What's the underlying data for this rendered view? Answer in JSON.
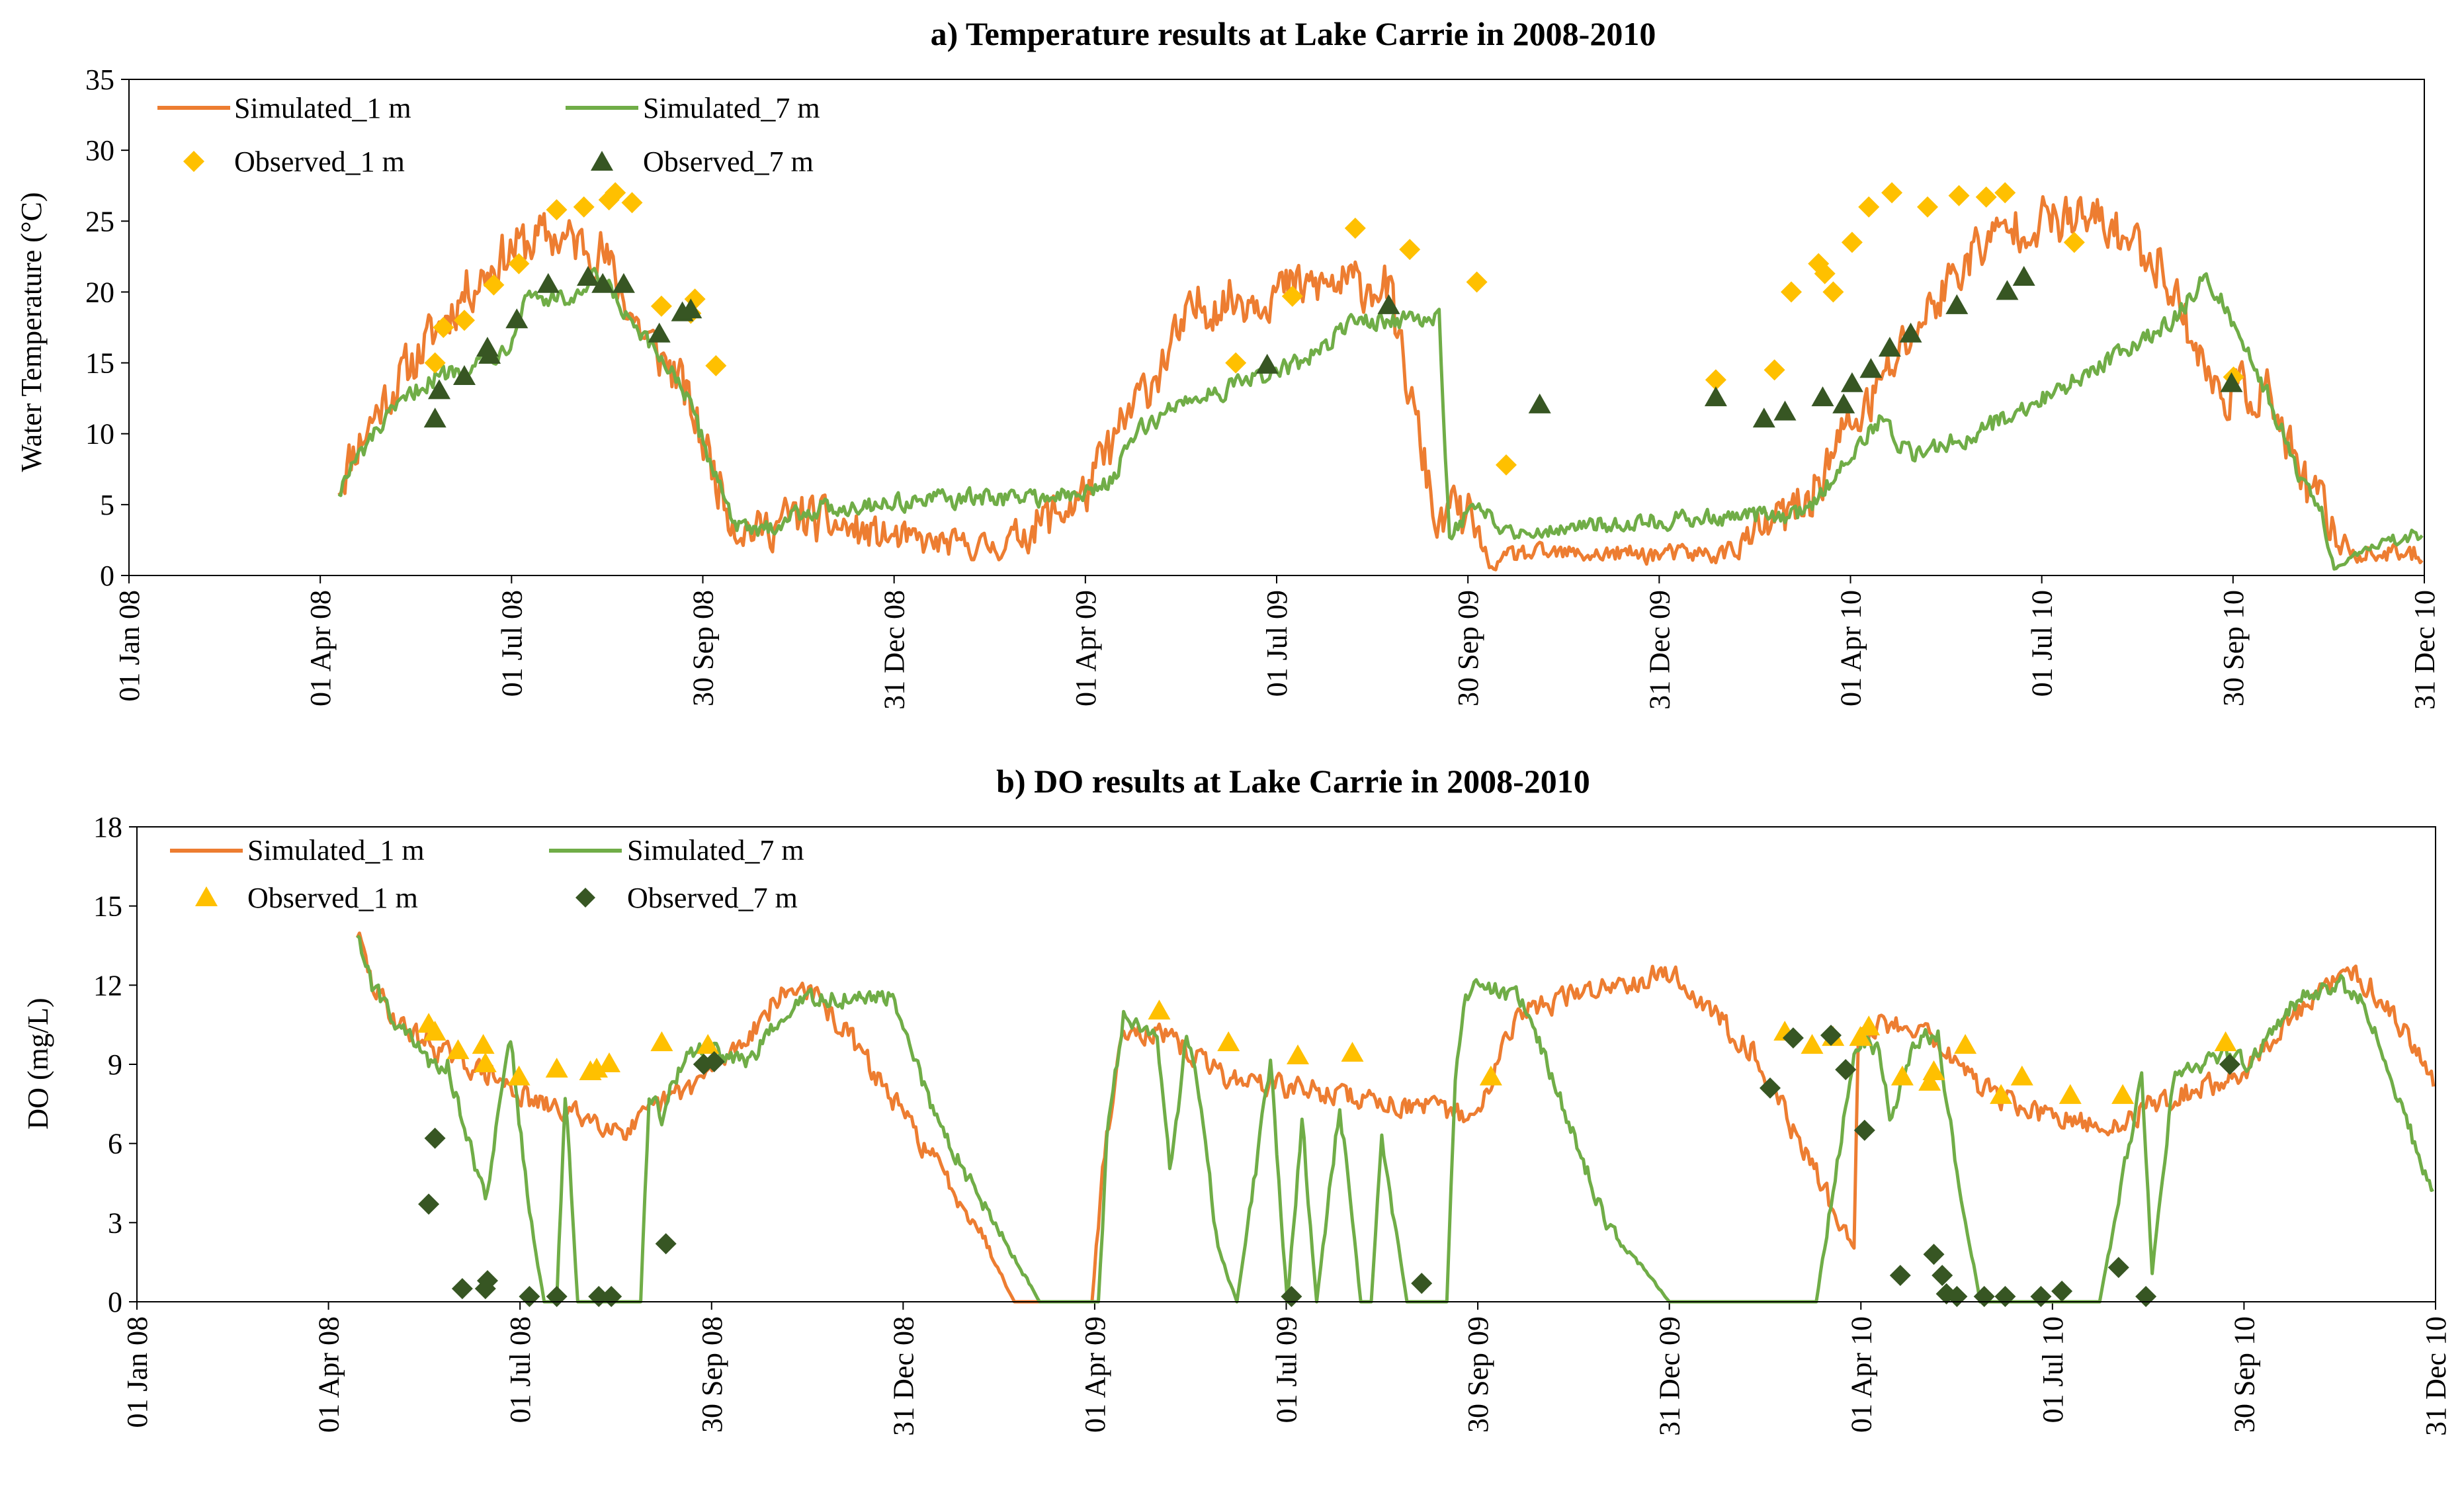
{
  "chart_data": [
    {
      "id": "temperature",
      "type": "line",
      "title": "a) Temperature results at Lake Carrie in 2008-2010",
      "xlabel": "",
      "ylabel": "Water Temperature (°C)",
      "ylim": [
        0,
        35
      ],
      "yticks": [
        0,
        5,
        10,
        15,
        20,
        25,
        30,
        35
      ],
      "xlim_days": [
        0,
        1095
      ],
      "xtick_labels": [
        "01 Jan 08",
        "01 Apr 08",
        "01 Jul 08",
        "30 Sep 08",
        "31 Dec 08",
        "01 Apr 09",
        "01 Jul 09",
        "30 Sep 09",
        "31 Dec 09",
        "01 Apr 10",
        "01 Jul 10",
        "30 Sep 10",
        "31 Dec 10"
      ],
      "x_units": "days since 01 Jan 2008",
      "grid": false,
      "legend_position": "top-left",
      "colors": {
        "sim1": "#ED7D31",
        "sim7": "#70AD47",
        "obs1": "#FFC000",
        "obs7": "#375623"
      },
      "legend": [
        {
          "key": "sim1",
          "label": "Simulated_1 m",
          "marker": "line"
        },
        {
          "key": "sim7",
          "label": "Simulated_7 m",
          "marker": "line"
        },
        {
          "key": "obs1",
          "label": "Observed_1 m",
          "marker": "diamond"
        },
        {
          "key": "obs7",
          "label": "Observed_7 m",
          "marker": "triangle"
        }
      ],
      "series": [
        {
          "key": "sim1",
          "name": "Simulated_1 m",
          "noise": 1.6,
          "x": [
            100,
            108,
            120,
            140,
            160,
            182,
            200,
            225,
            245,
            262,
            275,
            283,
            290,
            300,
            320,
            350,
            380,
            415,
            455,
            480,
            510,
            545,
            570,
            600,
            625,
            630,
            635,
            640,
            650,
            660,
            690,
            720,
            760,
            800,
            818,
            830,
            850,
            880,
            905,
            940,
            970,
            995,
            1020,
            1035,
            1045,
            1052,
            1062,
            1080,
            1094
          ],
          "y": [
            6.5,
            9,
            12,
            16,
            20,
            23,
            24,
            23,
            17,
            14,
            9,
            6,
            3.5,
            3.2,
            4.2,
            3,
            2.3,
            2,
            5.5,
            12,
            19,
            20,
            20.5,
            20.5,
            3,
            5,
            4,
            4,
            0.5,
            1.5,
            1.5,
            1.5,
            1.5,
            5,
            10,
            12,
            17,
            23,
            25,
            25,
            22,
            13,
            13,
            7,
            5,
            3,
            1.5,
            1.5,
            1.5
          ]
        },
        {
          "key": "sim7",
          "name": "Simulated_7 m",
          "noise": 0.6,
          "x": [
            100,
            108,
            120,
            140,
            155,
            165,
            180,
            190,
            200,
            215,
            222,
            230,
            240,
            262,
            275,
            283,
            290,
            300,
            320,
            350,
            380,
            415,
            455,
            470,
            480,
            505,
            520,
            560,
            585,
            600,
            615,
            625,
            630,
            640,
            650,
            660,
            690,
            720,
            760,
            800,
            818,
            835,
            850,
            880,
            920,
            975,
            990,
            1000,
            1020,
            1035,
            1045,
            1052,
            1062,
            1080,
            1094
          ],
          "y": [
            6,
            8,
            10.5,
            13.5,
            14.5,
            15,
            16,
            20,
            19.5,
            19.5,
            21,
            20,
            17.5,
            14,
            9,
            6,
            3.5,
            3,
            4.5,
            5,
            5.3,
            5.5,
            5.6,
            7,
            10,
            12.5,
            13,
            15,
            18,
            18,
            18,
            18,
            3,
            4.5,
            4,
            3,
            3.5,
            3.8,
            4.1,
            4.3,
            8,
            11,
            8.5,
            10,
            13,
            18,
            21,
            19,
            13,
            7,
            5,
            0.5,
            1.5,
            2.5,
            3
          ]
        },
        {
          "key": "obs1",
          "name": "Observed_1 m",
          "x": [
            146,
            150,
            160,
            174,
            186,
            204,
            217,
            229,
            232,
            240,
            254,
            268,
            270,
            280,
            528,
            555,
            585,
            611,
            643,
            657,
            757,
            785,
            793,
            806,
            809,
            813,
            822,
            830,
            841,
            858,
            873,
            886,
            895,
            928,
            1004
          ],
          "y": [
            15,
            17.5,
            18,
            20.5,
            22,
            25.8,
            26,
            26.5,
            27,
            26.3,
            19,
            18.5,
            19.5,
            14.8,
            15,
            19.7,
            24.5,
            23,
            20.7,
            7.8,
            13.8,
            14.5,
            20,
            22,
            21.3,
            20,
            23.5,
            26,
            27,
            26,
            26.8,
            26.7,
            27,
            23.5,
            14
          ]
        },
        {
          "key": "obs7",
          "name": "Observed_7 m",
          "x": [
            146,
            148,
            160,
            171,
            172,
            185,
            200,
            219,
            226,
            236,
            253,
            264,
            268,
            543,
            601,
            673,
            757,
            780,
            790,
            808,
            818,
            822,
            831,
            840,
            850,
            872,
            896,
            904,
            1003
          ],
          "y": [
            11,
            13,
            14,
            16,
            15.5,
            18,
            20.5,
            21,
            20.5,
            20.5,
            17,
            18.5,
            18.7,
            14.8,
            19,
            12,
            12.5,
            11,
            11.5,
            12.5,
            12,
            13.5,
            14.5,
            16,
            17,
            19,
            20,
            21,
            13.5
          ]
        }
      ]
    },
    {
      "id": "do",
      "type": "line",
      "title": "b) DO results at Lake Carrie in 2008-2010",
      "xlabel": "",
      "ylabel": "DO (mg/L)",
      "ylim": [
        0,
        18
      ],
      "yticks": [
        0,
        3,
        6,
        9,
        12,
        15,
        18
      ],
      "xlim_days": [
        0,
        1095
      ],
      "xtick_labels": [
        "01 Jan 08",
        "01 Apr 08",
        "01 Jul 08",
        "30 Sep 08",
        "31 Dec 08",
        "01 Apr 09",
        "01 Jul 09",
        "30 Sep 09",
        "31 Dec 09",
        "01 Apr 10",
        "01 Jul 10",
        "30 Sep 10",
        "31 Dec 10"
      ],
      "x_units": "days since 01 Jan 2008",
      "grid": false,
      "legend_position": "top-left",
      "colors": {
        "sim1": "#ED7D31",
        "sim7": "#70AD47",
        "obs1": "#FFC000",
        "obs7": "#375623"
      },
      "legend": [
        {
          "key": "sim1",
          "label": "Simulated_1 m",
          "marker": "line"
        },
        {
          "key": "sim7",
          "label": "Simulated_7 m",
          "marker": "line"
        },
        {
          "key": "obs1",
          "label": "Observed_1 m",
          "marker": "triangle"
        },
        {
          "key": "obs7",
          "label": "Observed_7 m",
          "marker": "diamond"
        }
      ],
      "series": [
        {
          "key": "sim1",
          "name": "Simulated_1 m",
          "noise": 0.4,
          "x": [
            105,
            112,
            125,
            145,
            170,
            190,
            215,
            235,
            250,
            270,
            290,
            305,
            318,
            340,
            370,
            400,
            418,
            455,
            460,
            470,
            490,
            520,
            560,
            600,
            640,
            650,
            660,
            700,
            730,
            770,
            818,
            820,
            830,
            850,
            880,
            910,
            940,
            960,
            1000,
            1030,
            1045,
            1055,
            1070,
            1094
          ],
          "y": [
            14,
            12,
            10.5,
            9.5,
            8.5,
            7.5,
            7,
            6.5,
            7.5,
            8.5,
            10,
            11.5,
            12,
            10,
            6.5,
            3,
            0,
            0,
            5,
            10.5,
            10,
            8.5,
            8,
            7.5,
            7,
            10,
            11,
            12,
            12.5,
            9.5,
            2,
            10,
            10.5,
            10.5,
            8,
            7,
            6.5,
            7.5,
            8.5,
            11,
            12,
            12.5,
            11.5,
            8.5
          ]
        },
        {
          "key": "sim7",
          "name": "Simulated_7 m",
          "noise": 0.3,
          "x": [
            105,
            112,
            125,
            140,
            148,
            158,
            166,
            178,
            186,
            194,
            200,
            204,
            210,
            216,
            222,
            234,
            240,
            244,
            250,
            254,
            262,
            275,
            290,
            305,
            320,
            360,
            380,
            430,
            455,
            458,
            462,
            470,
            486,
            492,
            500,
            506,
            515,
            524,
            540,
            548,
            555,
            562,
            573,
            583,
            588,
            593,
            605,
            615,
            624,
            628,
            632,
            640,
            660,
            700,
            730,
            775,
            800,
            818,
            822,
            830,
            835,
            848,
            858,
            867,
            878,
            890,
            905,
            920,
            935,
            955,
            960,
            970,
            985,
            995,
            1005,
            1030,
            1050,
            1060,
            1094
          ],
          "y": [
            14,
            12,
            10.5,
            9,
            9,
            6,
            4,
            10,
            4,
            0,
            0,
            8,
            0,
            0,
            0,
            0,
            0,
            8,
            7,
            8,
            9.5,
            9.5,
            9,
            10.5,
            11.5,
            11.5,
            7,
            0,
            0,
            0,
            6,
            11,
            10,
            5,
            10,
            8,
            2,
            0,
            9,
            0,
            7,
            0,
            7.5,
            0,
            0,
            6,
            0,
            0,
            0,
            8.5,
            11.5,
            12,
            11.5,
            3,
            0,
            0,
            0,
            9.5,
            10,
            9.5,
            7,
            10,
            10,
            5,
            0,
            0,
            0,
            0,
            0,
            8.5,
            1,
            8.5,
            9,
            9.5,
            9,
            11.5,
            12,
            11.5,
            4
          ]
        },
        {
          "key": "obs1",
          "name": "Observed_1 m",
          "x": [
            139,
            142,
            153,
            165,
            166,
            182,
            200,
            216,
            219,
            225,
            250,
            272,
            487,
            520,
            553,
            579,
            645,
            785,
            798,
            808,
            821,
            825,
            841,
            854,
            856,
            871,
            888,
            898,
            921,
            946,
            995
          ],
          "y": [
            10.5,
            10.2,
            9.5,
            9.7,
            9,
            8.5,
            8.8,
            8.7,
            8.8,
            9,
            9.8,
            9.7,
            11,
            9.8,
            9.3,
            9.4,
            8.5,
            10.2,
            9.7,
            10,
            10,
            10.4,
            8.5,
            8.3,
            8.7,
            9.7,
            7.8,
            8.5,
            7.8,
            7.8,
            9.8
          ]
        },
        {
          "key": "obs7",
          "name": "Observed_7 m",
          "x": [
            139,
            142,
            155,
            166,
            167,
            187,
            200,
            220,
            226,
            252,
            270,
            275,
            550,
            612,
            778,
            789,
            807,
            814,
            823,
            840,
            856,
            860,
            862,
            867,
            880,
            890,
            907,
            917,
            944,
            957,
            997
          ],
          "y": [
            3.7,
            6.2,
            0.5,
            0.5,
            0.8,
            0.2,
            0.2,
            0.2,
            0.2,
            2.2,
            9,
            9.1,
            0.2,
            0.7,
            8.1,
            10,
            10.1,
            8.8,
            6.5,
            1,
            1.8,
            1,
            0.3,
            0.2,
            0.2,
            0.2,
            0.2,
            0.4,
            1.3,
            0.2,
            9
          ]
        }
      ]
    }
  ]
}
